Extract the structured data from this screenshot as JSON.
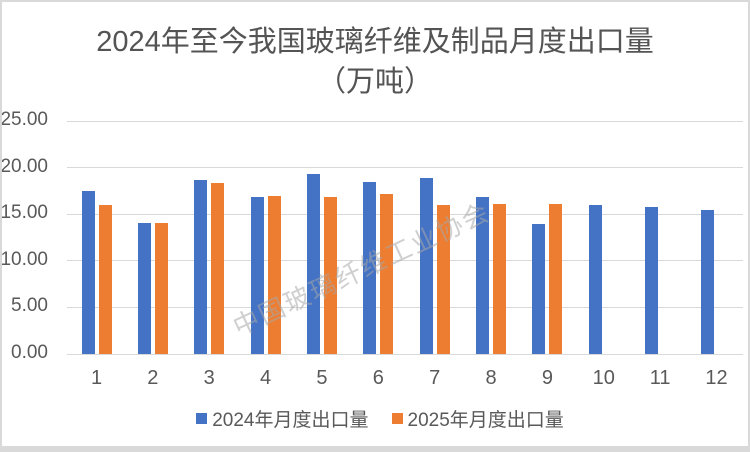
{
  "title": {
    "line1": "2024年至今我国玻璃纤维及制品月度出口量",
    "line2": "（万吨）"
  },
  "watermark": "中国玻璃纤维工业协会",
  "colors": {
    "series_2024": "#4472C4",
    "series_2025": "#ED7D31",
    "gridline": "#D9D9D9",
    "axis_text": "#595959",
    "title_text": "#545454",
    "border": "#D9D9D9"
  },
  "chart_data": {
    "type": "bar",
    "title": "2024年至今我国玻璃纤维及制品月度出口量（万吨）",
    "categories": [
      "1",
      "2",
      "3",
      "4",
      "5",
      "6",
      "7",
      "8",
      "9",
      "10",
      "11",
      "12"
    ],
    "series": [
      {
        "name": "2024年月度出口量",
        "color": "#4472C4",
        "values": [
          17.5,
          14.1,
          18.7,
          16.8,
          19.3,
          18.5,
          18.9,
          16.9,
          13.9,
          16.0,
          15.8,
          15.5
        ]
      },
      {
        "name": "2025年月度出口量",
        "color": "#ED7D31",
        "values": [
          16.0,
          14.1,
          18.3,
          17.0,
          16.9,
          17.2,
          16.0,
          16.1,
          16.1,
          null,
          null,
          null
        ]
      }
    ],
    "xlabel": "",
    "ylabel": "",
    "ylim": [
      0,
      25
    ],
    "yticks": [
      "0.00",
      "5.00",
      "10.00",
      "15.00",
      "20.00",
      "25.00"
    ],
    "grid": true,
    "legend_position": "bottom"
  }
}
